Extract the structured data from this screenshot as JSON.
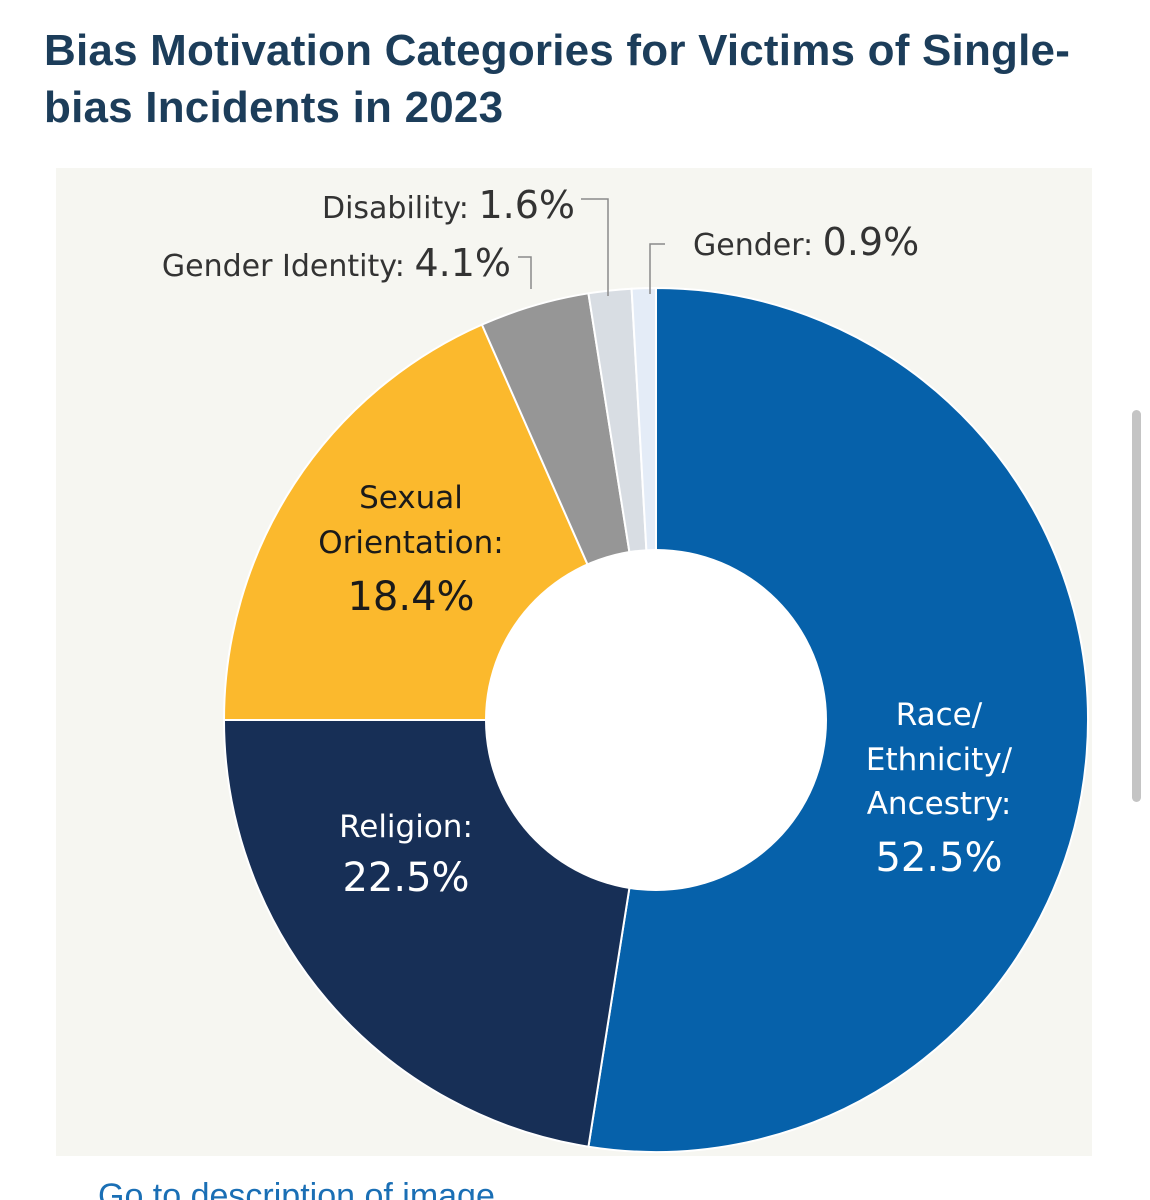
{
  "page": {
    "title": "Bias Motivation Categories for Victims of Single-bias Incidents in 2023",
    "link_text": "Go to description of image"
  },
  "chart_data": {
    "type": "pie",
    "donut": true,
    "title": "Bias Motivation Categories for Victims of Single-bias Incidents in 2023",
    "unit": "%",
    "slices": [
      {
        "label": "Race/ Ethnicity/ Ancestry:",
        "value": 52.5,
        "value_text": "52.5%",
        "color": "#0661aa",
        "label_color": "#ffffff"
      },
      {
        "label": "Religion:",
        "value": 22.5,
        "value_text": "22.5%",
        "color": "#172f56",
        "label_color": "#ffffff"
      },
      {
        "label": "Sexual Orientation:",
        "value": 18.4,
        "value_text": "18.4%",
        "color": "#fbb92d",
        "label_color": "#1a1a1a"
      },
      {
        "label": "Gender Identity:",
        "value": 4.1,
        "value_text": "4.1%",
        "color": "#969696",
        "label_color": "#333333"
      },
      {
        "label": "Disability:",
        "value": 1.6,
        "value_text": "1.6%",
        "color": "#d8dde3",
        "label_color": "#333333"
      },
      {
        "label": "Gender:",
        "value": 0.9,
        "value_text": "0.9%",
        "color": "#e4ecf7",
        "label_color": "#333333"
      }
    ],
    "start_angle": "12 o'clock, clockwise",
    "legend": "none (labels on slices)"
  }
}
